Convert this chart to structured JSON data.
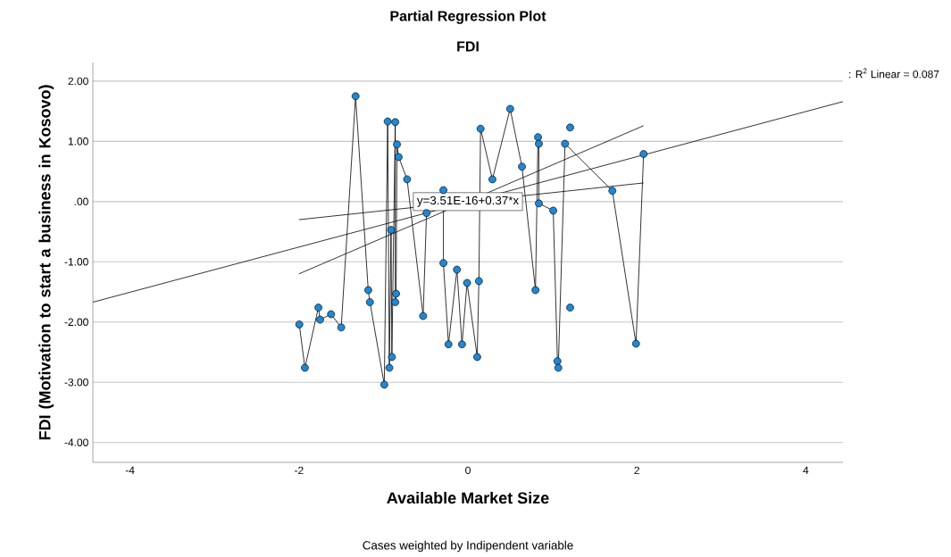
{
  "chart_data": {
    "type": "line",
    "title": "Partial Regression Plot",
    "subtitle": "FDI",
    "xlabel": "Available Market Size",
    "ylabel": "FDI (Motivation to start a business in Kosovo)",
    "xlim": [
      -4.44,
      4.44
    ],
    "ylim": [
      -4.33,
      2.31
    ],
    "xticks": [
      -4,
      -2,
      0,
      2,
      4
    ],
    "yticks": [
      {
        "value": 2,
        "label": "2.00"
      },
      {
        "value": 1,
        "label": "1.00"
      },
      {
        "value": 0,
        "label": ".00"
      },
      {
        "value": -1,
        "label": "-1.00"
      },
      {
        "value": -2,
        "label": "-2.00"
      },
      {
        "value": -3,
        "label": "-3.00"
      },
      {
        "value": -4,
        "label": "-4.00"
      }
    ],
    "grid": "y",
    "series": [
      {
        "marker": "none",
        "color": "#000000",
        "x": [
          -1.996,
          -1.93,
          -1.77,
          -1.75,
          -1.62,
          -1.5,
          -1.33,
          -1.18,
          -1.16,
          -0.99,
          -0.95,
          -0.93,
          -0.91,
          -0.9,
          -0.86,
          -0.86,
          -0.85,
          -0.84,
          -0.82,
          -0.72,
          -0.53,
          -0.49,
          -0.29,
          -0.29,
          -0.23,
          -0.13,
          -0.07,
          -0.01,
          0.11,
          0.13,
          0.15,
          0.29,
          0.5,
          0.64,
          0.8,
          0.83,
          0.84,
          0.84,
          1.01,
          1.06,
          1.07,
          1.15,
          1.71,
          1.99,
          2.08
        ],
        "values": [
          -2.04,
          -2.76,
          -1.76,
          -1.96,
          -1.87,
          -2.09,
          1.75,
          -1.47,
          -1.67,
          -3.04,
          1.33,
          -2.76,
          -0.47,
          -2.58,
          1.32,
          -1.67,
          -1.53,
          0.95,
          0.74,
          0.37,
          -1.9,
          -0.19,
          0.19,
          -1.02,
          -2.37,
          -1.13,
          -2.37,
          -1.35,
          -2.58,
          -1.32,
          1.21,
          0.37,
          1.54,
          0.58,
          -1.47,
          1.07,
          0.96,
          -0.03,
          -0.15,
          -2.65,
          -2.76,
          0.96,
          0.18,
          -2.36,
          0.79
        ]
      },
      {
        "marker": "none",
        "color": "#000000",
        "x": [
          -4.44,
          4.44
        ],
        "values": [
          -1.67,
          1.66
        ]
      },
      {
        "marker": "none",
        "color": "#000000",
        "x": [
          -2.0,
          2.08
        ],
        "values": [
          -0.3,
          0.31
        ]
      },
      {
        "marker": "none",
        "color": "#000000",
        "x": [
          -2.0,
          2.08
        ],
        "values": [
          -1.2,
          1.26
        ]
      },
      {
        "type": "scatter",
        "marker": "circle",
        "color": "#1e88d6",
        "x": [
          -1.996,
          -1.93,
          -1.77,
          -1.75,
          -1.62,
          -1.5,
          -1.33,
          -1.18,
          -1.16,
          -0.99,
          -0.95,
          -0.93,
          -0.91,
          -0.9,
          -0.86,
          -0.86,
          -0.85,
          -0.84,
          -0.82,
          -0.72,
          -0.53,
          -0.49,
          -0.29,
          -0.29,
          -0.23,
          -0.13,
          -0.07,
          -0.01,
          0.11,
          0.13,
          0.15,
          0.29,
          0.5,
          0.64,
          0.8,
          0.83,
          0.84,
          0.84,
          1.01,
          1.06,
          1.07,
          1.15,
          1.21,
          1.21,
          1.71,
          1.99,
          2.08
        ],
        "values": [
          -2.04,
          -2.76,
          -1.76,
          -1.96,
          -1.87,
          -2.09,
          1.75,
          -1.47,
          -1.67,
          -3.04,
          1.33,
          -2.76,
          -0.47,
          -2.58,
          1.32,
          -1.67,
          -1.53,
          0.95,
          0.74,
          0.37,
          -1.9,
          -0.19,
          0.19,
          -1.02,
          -2.37,
          -1.13,
          -2.37,
          -1.35,
          -2.58,
          -1.32,
          1.21,
          0.37,
          1.54,
          0.58,
          -1.47,
          1.07,
          0.96,
          -0.03,
          -0.15,
          -2.65,
          -2.76,
          0.96,
          1.23,
          -1.76,
          0.18,
          -2.36,
          0.79
        ]
      }
    ],
    "annotations": [
      {
        "text": "y=3.51E-16+0.37*x",
        "x": 0,
        "y": 0
      },
      ": R$^{2}$ Linear = 0.087",
      "Cases weighted by Indipendent variable"
    ]
  }
}
